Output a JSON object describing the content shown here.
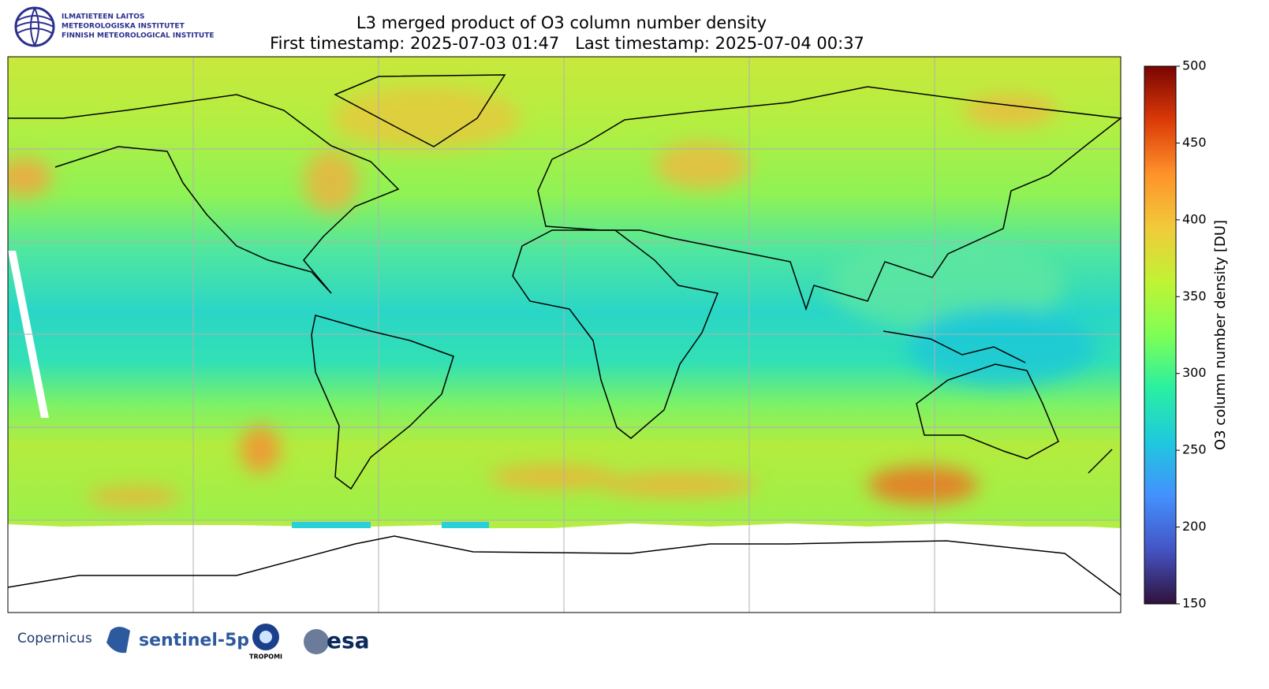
{
  "header": {
    "org_lines": [
      "ILMATIETEEN LAITOS",
      "METEOROLOGISKA INSTITUTET",
      "FINNISH METEOROLOGICAL INSTITUTE"
    ],
    "title": "L3 merged product of O3 column number density",
    "subtitle": "First timestamp: 2025-07-03 01:47   Last timestamp: 2025-07-04 00:37"
  },
  "colorbar": {
    "label": "O3 column number density [DU]",
    "lim": [
      150,
      500
    ],
    "ticks": [
      150,
      200,
      250,
      300,
      350,
      400,
      450,
      500
    ]
  },
  "footer": {
    "logos": [
      "Copernicus",
      "sentinel-5p",
      "TROPOMI",
      "esa"
    ]
  }
}
